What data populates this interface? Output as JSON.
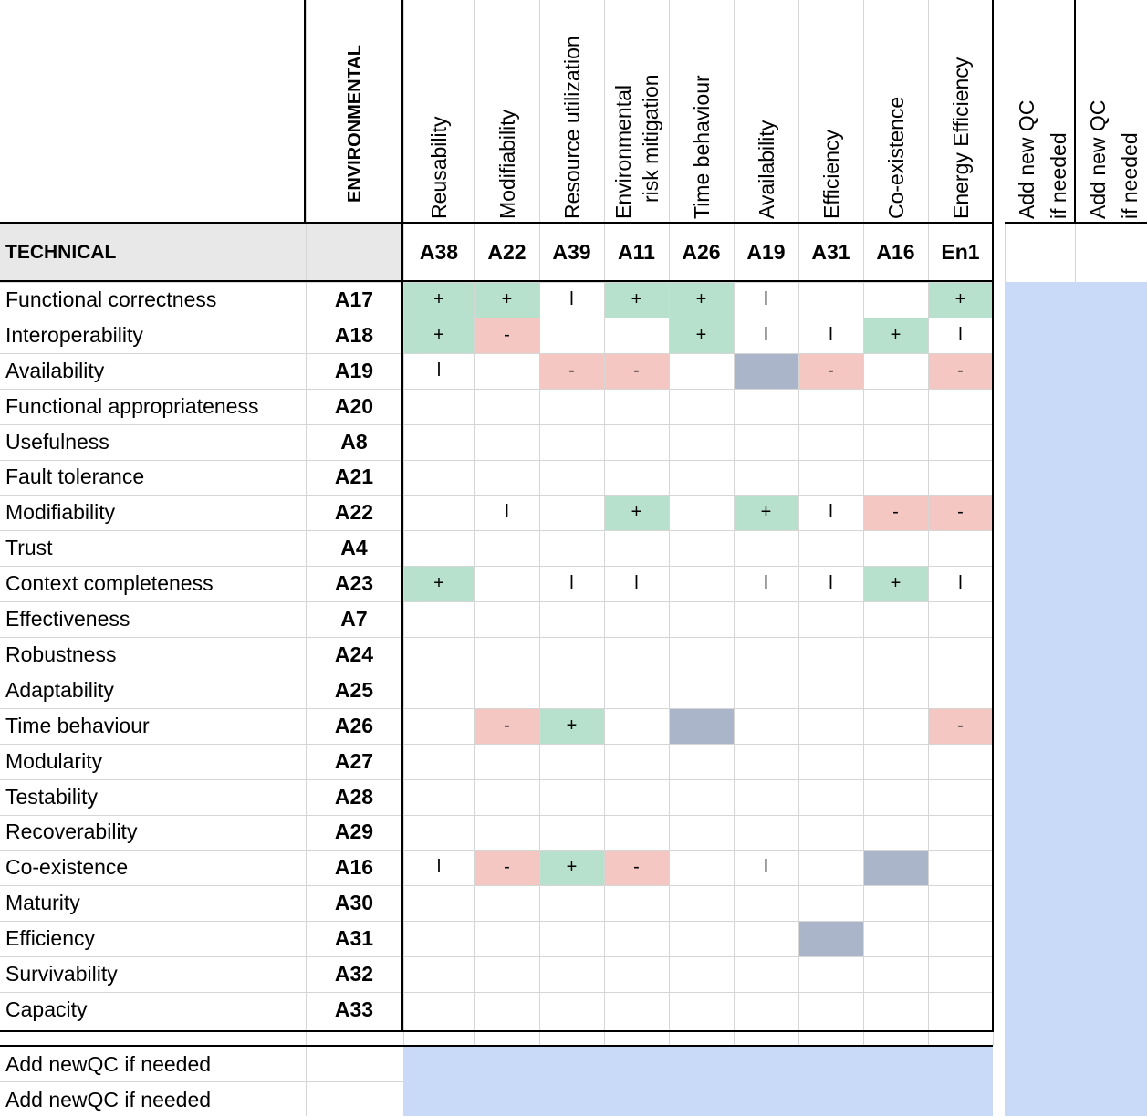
{
  "header": {
    "row_group_label": "ENVIRONMENTAL",
    "corner_label": "TECHNICAL",
    "columns": [
      {
        "name": "Reusability",
        "code": "A38"
      },
      {
        "name": "Modifiability",
        "code": "A22"
      },
      {
        "name": "Resource utilization",
        "code": "A39"
      },
      {
        "name": "Environmental risk mitigation",
        "line1": "Environmental",
        "line2": "risk mitigation",
        "code": "A11"
      },
      {
        "name": "Time behaviour",
        "code": "A26"
      },
      {
        "name": "Availability",
        "code": "A19"
      },
      {
        "name": "Efficiency",
        "code": "A31"
      },
      {
        "name": "Co-existence",
        "code": "A16"
      },
      {
        "name": "Energy Efficiency",
        "code": "En1"
      }
    ],
    "extra_columns": [
      {
        "line1": "Add new QC",
        "line2": "if needed"
      },
      {
        "line1": "Add new QC",
        "line2": "if needed"
      }
    ]
  },
  "rows": [
    {
      "name": "Functional correctness",
      "code": "A17",
      "cells": [
        "+",
        "+",
        "l",
        "+",
        "+",
        "l",
        "",
        "",
        "+"
      ]
    },
    {
      "name": "Interoperability",
      "code": "A18",
      "cells": [
        "+",
        "-",
        "",
        "",
        "+",
        "l",
        "l",
        "+",
        "l"
      ]
    },
    {
      "name": "Availability",
      "code": "A19",
      "cells": [
        "l",
        "",
        "-",
        "-",
        "",
        "self",
        "-",
        "",
        "-"
      ]
    },
    {
      "name": "Functional appropriateness",
      "code": "A20",
      "cells": [
        "",
        "",
        "",
        "",
        "",
        "",
        "",
        "",
        ""
      ]
    },
    {
      "name": "Usefulness",
      "code": "A8",
      "cells": [
        "",
        "",
        "",
        "",
        "",
        "",
        "",
        "",
        ""
      ]
    },
    {
      "name": "Fault tolerance",
      "code": "A21",
      "cells": [
        "",
        "",
        "",
        "",
        "",
        "",
        "",
        "",
        ""
      ]
    },
    {
      "name": "Modifiability",
      "code": "A22",
      "cells": [
        "",
        "l",
        "",
        "+",
        "",
        "+",
        "l",
        "-",
        "-"
      ]
    },
    {
      "name": "Trust",
      "code": "A4",
      "cells": [
        "",
        "",
        "",
        "",
        "",
        "",
        "",
        "",
        ""
      ]
    },
    {
      "name": "Context completeness",
      "code": "A23",
      "cells": [
        "+",
        "",
        "l",
        "l",
        "",
        "l",
        "l",
        "+",
        "l"
      ]
    },
    {
      "name": "Effectiveness",
      "code": "A7",
      "cells": [
        "",
        "",
        "",
        "",
        "",
        "",
        "",
        "",
        ""
      ]
    },
    {
      "name": "Robustness",
      "code": "A24",
      "cells": [
        "",
        "",
        "",
        "",
        "",
        "",
        "",
        "",
        ""
      ]
    },
    {
      "name": "Adaptability",
      "code": "A25",
      "cells": [
        "",
        "",
        "",
        "",
        "",
        "",
        "",
        "",
        ""
      ]
    },
    {
      "name": "Time behaviour",
      "code": "A26",
      "cells": [
        "",
        "-",
        "+",
        "",
        "self",
        "",
        "",
        "",
        "-"
      ]
    },
    {
      "name": "Modularity",
      "code": "A27",
      "cells": [
        "",
        "",
        "",
        "",
        "",
        "",
        "",
        "",
        ""
      ]
    },
    {
      "name": "Testability",
      "code": "A28",
      "cells": [
        "",
        "",
        "",
        "",
        "",
        "",
        "",
        "",
        ""
      ]
    },
    {
      "name": "Recoverability",
      "code": "A29",
      "cells": [
        "",
        "",
        "",
        "",
        "",
        "",
        "",
        "",
        ""
      ]
    },
    {
      "name": "Co-existence",
      "code": "A16",
      "cells": [
        "l",
        "-",
        "+",
        "-",
        "",
        "l",
        "",
        "self",
        ""
      ]
    },
    {
      "name": "Maturity",
      "code": "A30",
      "cells": [
        "",
        "",
        "",
        "",
        "",
        "",
        "",
        "",
        ""
      ]
    },
    {
      "name": "Efficiency",
      "code": "A31",
      "cells": [
        "",
        "",
        "",
        "",
        "",
        "",
        "self",
        "",
        ""
      ]
    },
    {
      "name": "Survivability",
      "code": "A32",
      "cells": [
        "",
        "",
        "",
        "",
        "",
        "",
        "",
        "",
        ""
      ]
    },
    {
      "name": "Capacity",
      "code": "A33",
      "cells": [
        "",
        "",
        "",
        "",
        "",
        "",
        "",
        "",
        ""
      ]
    }
  ],
  "footer_rows": [
    {
      "name": "Add newQC if needed"
    },
    {
      "name": "Add newQC if needed"
    }
  ],
  "colors": {
    "positive": "#b7e1cd",
    "negative": "#f4c7c3",
    "self": "#aab5c9",
    "placeholder": "#c9daf8",
    "header_band": "#e8e8e8"
  }
}
